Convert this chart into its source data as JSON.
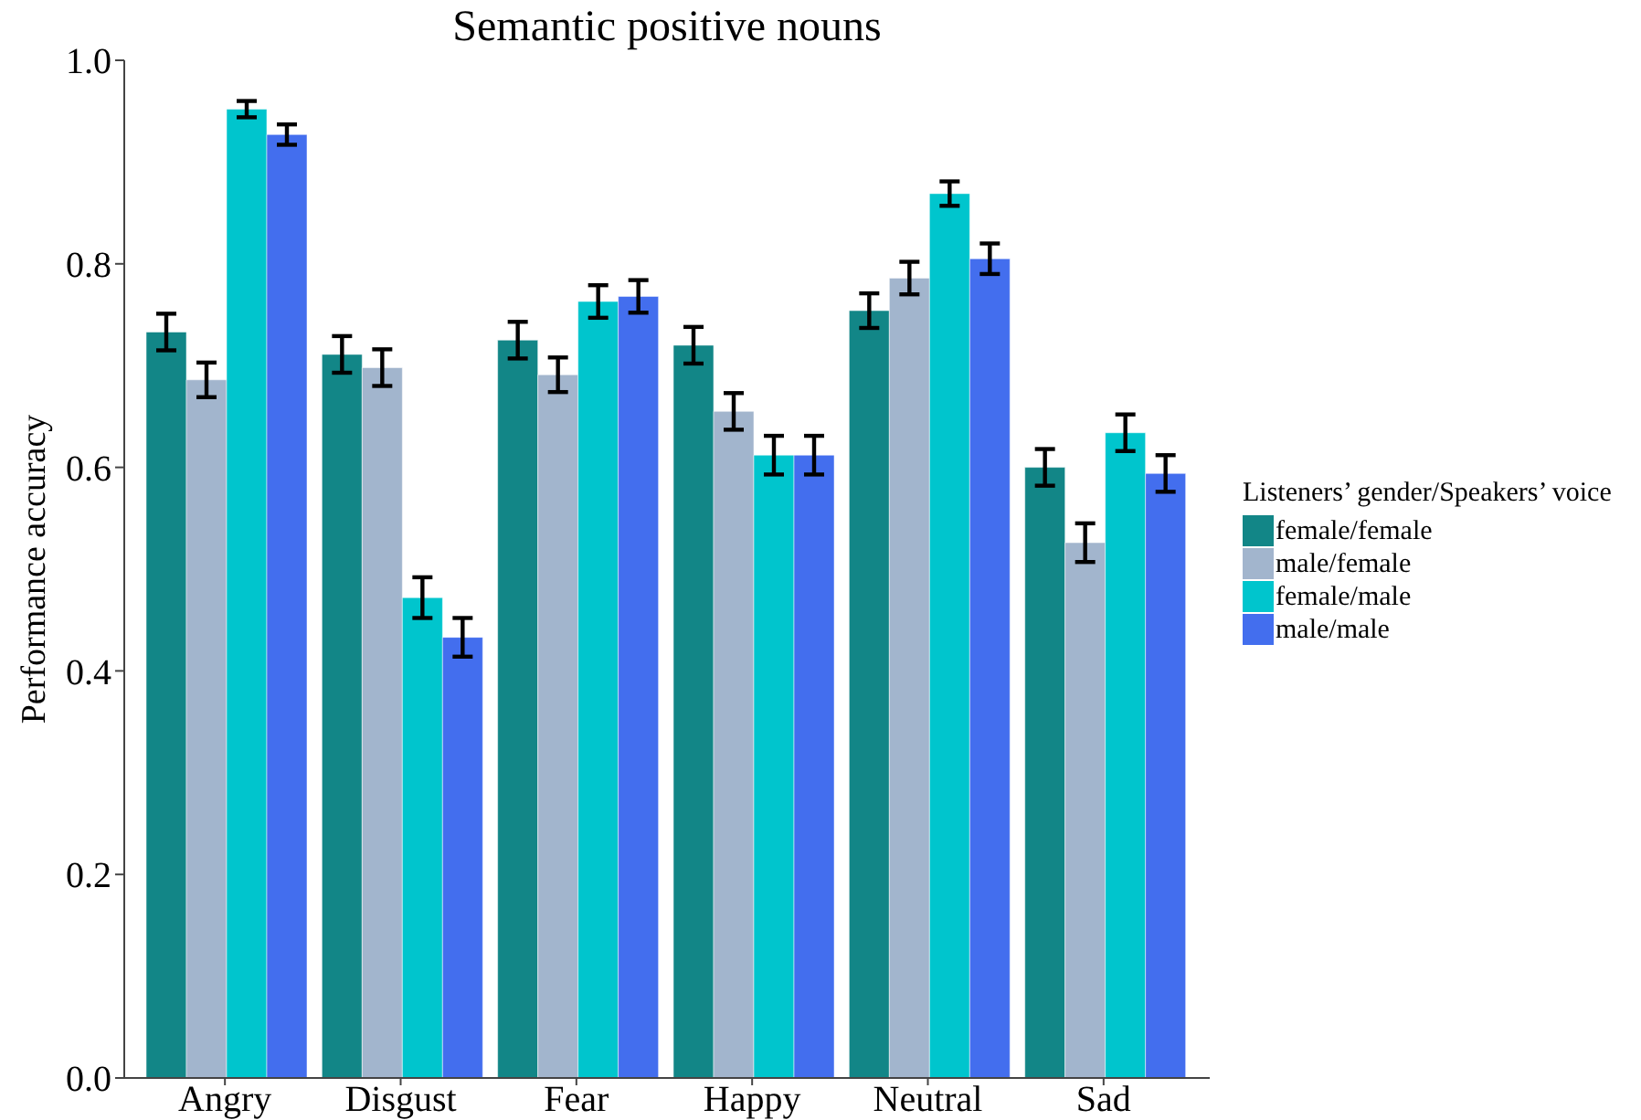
{
  "chart_data": {
    "type": "bar",
    "title": "Semantic positive nouns",
    "ylabel": "Performance accuracy",
    "legend_title": "Listeners’ gender/Speakers’ voice",
    "categories": [
      "Angry",
      "Disgust",
      "Fear",
      "Happy",
      "Neutral",
      "Sad"
    ],
    "series": [
      {
        "name": "female/female",
        "color": "#128687",
        "values": [
          0.733,
          0.711,
          0.725,
          0.72,
          0.754,
          0.6
        ],
        "errors": [
          0.018,
          0.018,
          0.018,
          0.018,
          0.017,
          0.018
        ]
      },
      {
        "name": "male/female",
        "color": "#a2b5cd",
        "values": [
          0.686,
          0.698,
          0.691,
          0.655,
          0.786,
          0.526
        ],
        "errors": [
          0.017,
          0.018,
          0.017,
          0.018,
          0.016,
          0.019
        ]
      },
      {
        "name": "female/male",
        "color": "#00c5cd",
        "values": [
          0.952,
          0.472,
          0.763,
          0.612,
          0.869,
          0.634
        ],
        "errors": [
          0.008,
          0.02,
          0.016,
          0.019,
          0.012,
          0.018
        ]
      },
      {
        "name": "male/male",
        "color": "#436eee",
        "values": [
          0.927,
          0.433,
          0.768,
          0.612,
          0.805,
          0.594
        ],
        "errors": [
          0.01,
          0.019,
          0.016,
          0.019,
          0.015,
          0.018
        ]
      }
    ],
    "ylim": [
      0,
      1
    ],
    "yticks": [
      {
        "value": 0,
        "label": "0.0"
      },
      0.2,
      0.4,
      0.6,
      0.8,
      {
        "value": 1,
        "label": "1.0"
      }
    ],
    "legend": "right"
  }
}
